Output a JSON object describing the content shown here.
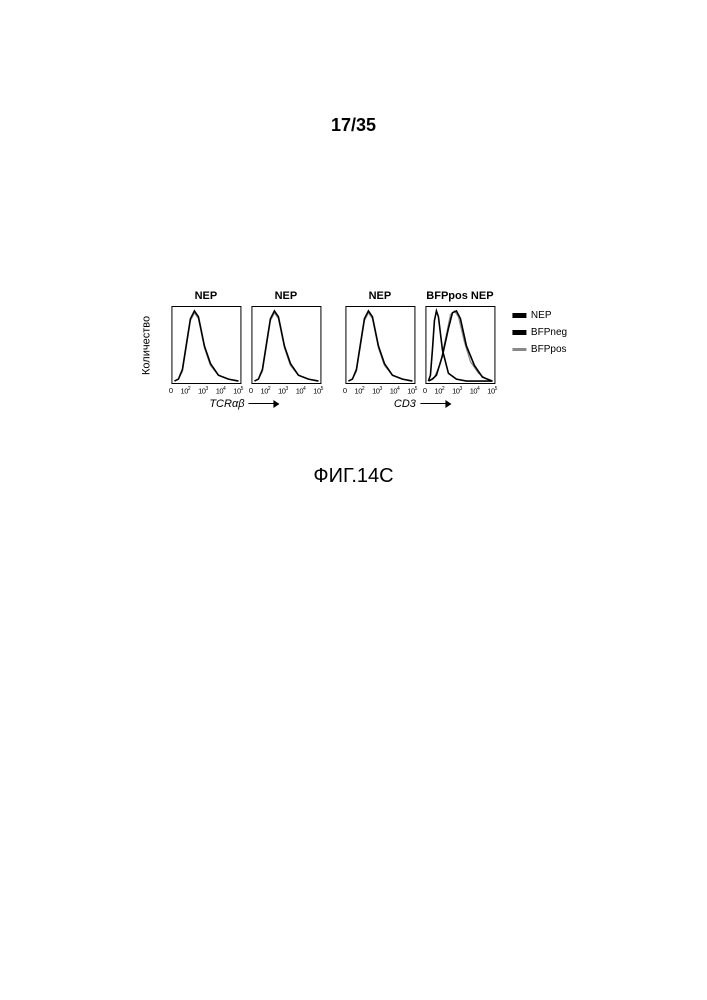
{
  "page_number": "17/35",
  "figure_caption": "ФИГ.14C",
  "ylabel": "Количество",
  "panels": [
    {
      "title": "NEP",
      "ticks": [
        "0",
        "10²",
        "10³",
        "10⁴",
        "10⁵"
      ],
      "curves": [
        {
          "color": "#888888",
          "width": 1.2,
          "points": [
            [
              2,
              76
            ],
            [
              6,
              74
            ],
            [
              10,
              66
            ],
            [
              14,
              40
            ],
            [
              18,
              14
            ],
            [
              22,
              6
            ],
            [
              26,
              12
            ],
            [
              32,
              42
            ],
            [
              38,
              60
            ],
            [
              46,
              70
            ],
            [
              56,
              74
            ],
            [
              66,
              76
            ]
          ]
        },
        {
          "color": "#000000",
          "width": 1.6,
          "points": [
            [
              2,
              76
            ],
            [
              6,
              74
            ],
            [
              10,
              64
            ],
            [
              14,
              38
            ],
            [
              18,
              12
            ],
            [
              22,
              4
            ],
            [
              26,
              10
            ],
            [
              32,
              40
            ],
            [
              38,
              58
            ],
            [
              46,
              70
            ],
            [
              56,
              74
            ],
            [
              66,
              76
            ]
          ]
        }
      ]
    },
    {
      "title": "NEP",
      "ticks": [
        "0",
        "10²",
        "10³",
        "10⁴",
        "10⁵"
      ],
      "curves": [
        {
          "color": "#888888",
          "width": 1.2,
          "points": [
            [
              2,
              76
            ],
            [
              6,
              74
            ],
            [
              10,
              66
            ],
            [
              14,
              40
            ],
            [
              18,
              14
            ],
            [
              22,
              6
            ],
            [
              26,
              12
            ],
            [
              32,
              42
            ],
            [
              38,
              60
            ],
            [
              46,
              70
            ],
            [
              56,
              74
            ],
            [
              66,
              76
            ]
          ]
        },
        {
          "color": "#000000",
          "width": 1.6,
          "points": [
            [
              2,
              76
            ],
            [
              6,
              74
            ],
            [
              10,
              64
            ],
            [
              14,
              38
            ],
            [
              18,
              12
            ],
            [
              22,
              4
            ],
            [
              26,
              10
            ],
            [
              32,
              40
            ],
            [
              38,
              58
            ],
            [
              46,
              70
            ],
            [
              56,
              74
            ],
            [
              66,
              76
            ]
          ]
        }
      ]
    },
    {
      "title": "NEP",
      "ticks": [
        "0",
        "10²",
        "10³",
        "10⁴",
        "10⁵"
      ],
      "curves": [
        {
          "color": "#888888",
          "width": 1.2,
          "points": [
            [
              2,
              76
            ],
            [
              6,
              74
            ],
            [
              10,
              66
            ],
            [
              14,
              40
            ],
            [
              18,
              14
            ],
            [
              22,
              6
            ],
            [
              26,
              12
            ],
            [
              32,
              42
            ],
            [
              38,
              60
            ],
            [
              46,
              70
            ],
            [
              56,
              74
            ],
            [
              66,
              76
            ]
          ]
        },
        {
          "color": "#000000",
          "width": 1.6,
          "points": [
            [
              2,
              76
            ],
            [
              6,
              74
            ],
            [
              10,
              64
            ],
            [
              14,
              38
            ],
            [
              18,
              12
            ],
            [
              22,
              4
            ],
            [
              26,
              10
            ],
            [
              32,
              40
            ],
            [
              38,
              58
            ],
            [
              46,
              70
            ],
            [
              56,
              74
            ],
            [
              66,
              76
            ]
          ]
        }
      ]
    },
    {
      "title": "BFPpos NEP",
      "ticks": [
        "0",
        "10²",
        "10³",
        "10⁴",
        "10⁵"
      ],
      "curves": [
        {
          "color": "#888888",
          "width": 1.2,
          "points": [
            [
              2,
              76
            ],
            [
              8,
              72
            ],
            [
              14,
              58
            ],
            [
              20,
              28
            ],
            [
              24,
              8
            ],
            [
              28,
              4
            ],
            [
              32,
              10
            ],
            [
              38,
              36
            ],
            [
              44,
              56
            ],
            [
              52,
              68
            ],
            [
              60,
              74
            ],
            [
              66,
              76
            ]
          ]
        },
        {
          "color": "#000000",
          "width": 1.6,
          "points": [
            [
              2,
              76
            ],
            [
              6,
              74
            ],
            [
              10,
              70
            ],
            [
              16,
              50
            ],
            [
              22,
              22
            ],
            [
              26,
              6
            ],
            [
              30,
              4
            ],
            [
              34,
              12
            ],
            [
              40,
              40
            ],
            [
              48,
              60
            ],
            [
              56,
              72
            ],
            [
              66,
              76
            ]
          ]
        },
        {
          "color": "#000000",
          "width": 1.6,
          "points": [
            [
              2,
              76
            ],
            [
              4,
              70
            ],
            [
              6,
              44
            ],
            [
              8,
              14
            ],
            [
              10,
              4
            ],
            [
              12,
              10
            ],
            [
              16,
              44
            ],
            [
              22,
              68
            ],
            [
              30,
              74
            ],
            [
              40,
              76
            ],
            [
              66,
              76
            ]
          ]
        }
      ]
    }
  ],
  "xaxis_groups": [
    {
      "label": "TCRαβ",
      "span": 2,
      "width": 152
    },
    {
      "label": "CD3",
      "span": 2,
      "width": 152
    }
  ],
  "legend": [
    {
      "label": "NEP",
      "color": "#000000",
      "width": 14,
      "height": 5
    },
    {
      "label": "BFPneg",
      "color": "#000000",
      "width": 14,
      "height": 5
    },
    {
      "label": "BFPpos",
      "color": "#888888",
      "width": 14,
      "height": 3
    }
  ],
  "colors": {
    "background": "#ffffff",
    "border": "#000000",
    "text": "#000000"
  }
}
